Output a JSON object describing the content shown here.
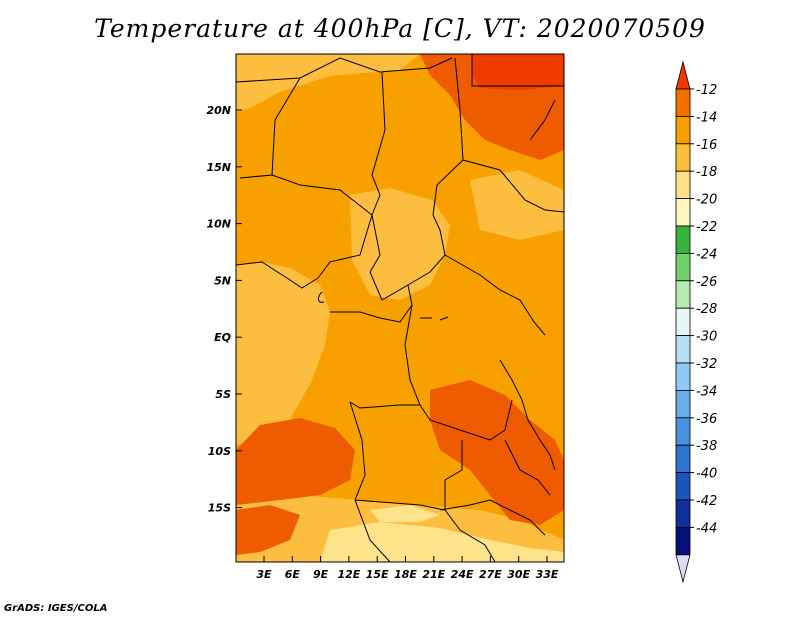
{
  "title": "Temperature at 400hPa [C], VT: 2020070509",
  "credit": "GrADS: IGES/COLA",
  "map": {
    "lat_labels": [
      "20N",
      "15N",
      "10N",
      "5N",
      "EQ",
      "5S",
      "10S",
      "15S"
    ],
    "lon_labels": [
      "3E",
      "6E",
      "9E",
      "12E",
      "15E",
      "18E",
      "21E",
      "24E",
      "27E",
      "30E",
      "33E"
    ],
    "lat_range": [
      -20,
      25
    ],
    "lon_range": [
      0,
      35
    ],
    "field_colors": {
      "-12 to -14": "#ef5b00",
      "-14 to -16": "#f8a000",
      "-16 to -18": "#fdbd3e",
      "-18 to -20": "#fee38b"
    }
  },
  "colorbar": {
    "labels": [
      "-12",
      "-14",
      "-16",
      "-18",
      "-20",
      "-22",
      "-24",
      "-26",
      "-28",
      "-30",
      "-32",
      "-34",
      "-36",
      "-38",
      "-40",
      "-42",
      "-44"
    ],
    "colors": [
      "#ee3b00",
      "#f76e00",
      "#f9a000",
      "#fcbf3c",
      "#fee08a",
      "#fff7c0",
      "#36b43c",
      "#6fd26a",
      "#b6eab0",
      "#e4f7f6",
      "#b7dff5",
      "#90c9f3",
      "#6aaee9",
      "#4a92dd",
      "#2f73d0",
      "#1a55be",
      "#0f2f9c",
      "#08107a",
      "#dcdcf6"
    ]
  }
}
